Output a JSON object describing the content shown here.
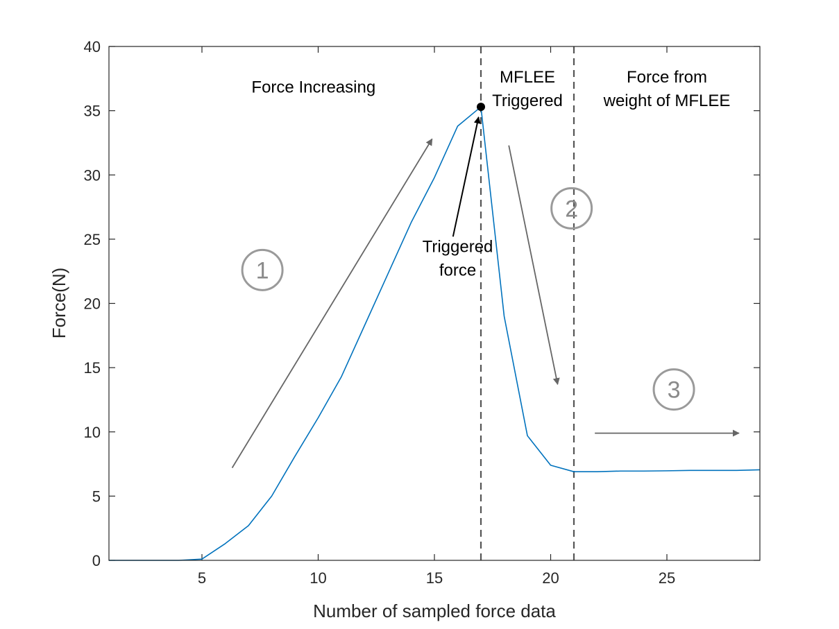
{
  "chart_data": {
    "type": "line",
    "title": "",
    "xlabel": "Number of sampled force data",
    "ylabel": "Force(N)",
    "xlim": [
      1,
      29
    ],
    "ylim": [
      0,
      40
    ],
    "xticks": [
      5,
      10,
      15,
      20,
      25
    ],
    "yticks": [
      0,
      5,
      10,
      15,
      20,
      25,
      30,
      35,
      40
    ],
    "grid": false,
    "series": [
      {
        "color": "#0072BD",
        "x": [
          1,
          2,
          3,
          4,
          5,
          6,
          7,
          8,
          9,
          10,
          11,
          12,
          13,
          14,
          15,
          16,
          17,
          18,
          19,
          20,
          21,
          22,
          23,
          24,
          25,
          26,
          27,
          28,
          29
        ],
        "y": [
          0,
          0,
          0,
          0,
          0.1,
          1.3,
          2.7,
          5.0,
          8.1,
          11.1,
          14.3,
          18.3,
          22.3,
          26.3,
          29.8,
          33.8,
          35.3,
          19.0,
          9.7,
          7.4,
          6.9,
          6.9,
          6.95,
          6.95,
          6.97,
          7.0,
          7.0,
          7.0,
          7.05
        ]
      }
    ],
    "vlines": [
      {
        "x": 17,
        "style": "dashed",
        "color": "#555555"
      },
      {
        "x": 21,
        "style": "dashed",
        "color": "#555555"
      }
    ],
    "marker": {
      "x": 17,
      "y": 35.3,
      "color": "#000000"
    },
    "text_annotations": [
      {
        "lines": [
          "Force Increasing"
        ],
        "x": 9.8,
        "y": 36.4,
        "anchor": "middle"
      },
      {
        "lines": [
          "MFLEE",
          "Triggered"
        ],
        "x": 19.0,
        "y": 37.2,
        "anchor": "middle"
      },
      {
        "lines": [
          "Force from",
          "weight of MFLEE"
        ],
        "x": 25.0,
        "y": 37.2,
        "anchor": "middle"
      },
      {
        "lines": [
          "Triggered",
          "force"
        ],
        "x": 16.0,
        "y": 24.0,
        "anchor": "middle"
      }
    ],
    "circled_labels": [
      {
        "text": "1",
        "x": 7.6,
        "y": 22.6
      },
      {
        "text": "2",
        "x": 20.9,
        "y": 27.4
      },
      {
        "text": "3",
        "x": 25.3,
        "y": 13.3
      }
    ],
    "arrows": [
      {
        "from": [
          6.3,
          7.2
        ],
        "to": [
          14.9,
          32.8
        ],
        "color": "#666666"
      },
      {
        "from": [
          18.2,
          32.3
        ],
        "to": [
          20.3,
          13.7
        ],
        "color": "#666666"
      },
      {
        "from": [
          21.9,
          9.9
        ],
        "to": [
          28.1,
          9.9
        ],
        "color": "#666666"
      },
      {
        "from": [
          15.8,
          25.2
        ],
        "to": [
          16.9,
          34.5
        ],
        "color": "#000000"
      }
    ]
  }
}
